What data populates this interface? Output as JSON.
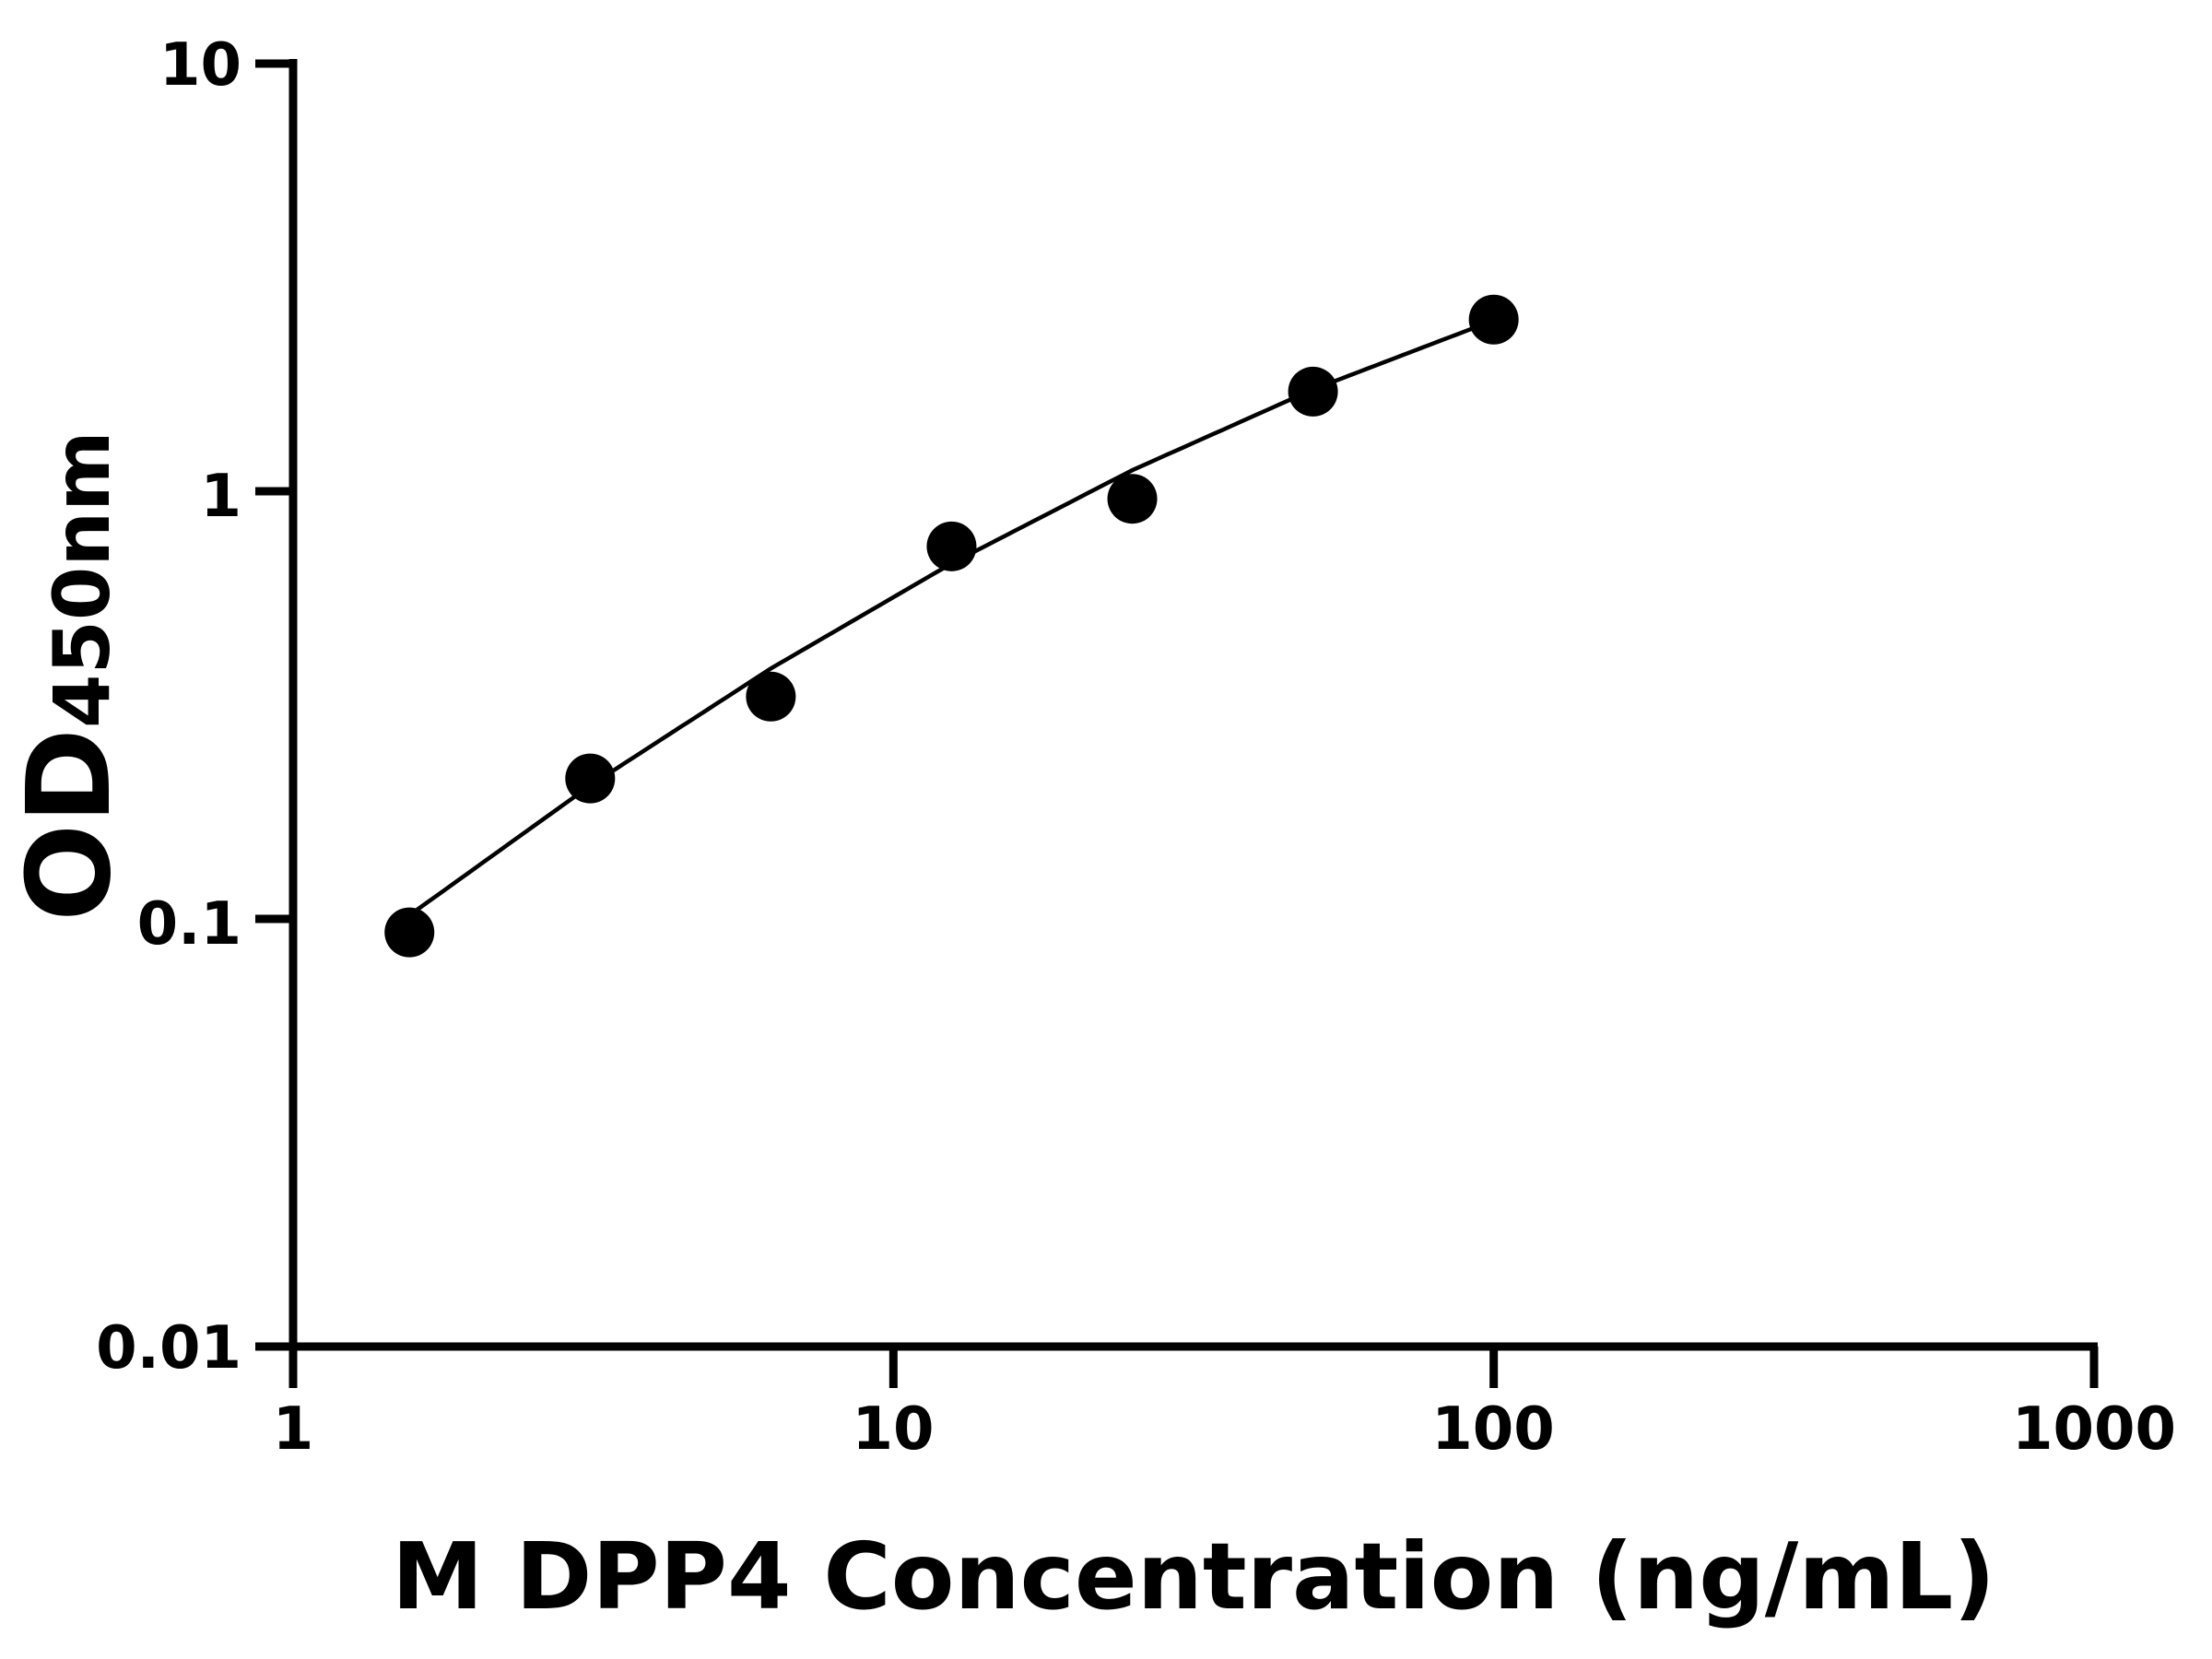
{
  "chart_data": {
    "type": "scatter",
    "title": "",
    "xlabel": "M DPP4 Concentration (ng/mL)",
    "ylabel_main": "OD",
    "ylabel_sub": "450nm",
    "xscale": "log",
    "yscale": "log",
    "xlim": [
      1,
      1000
    ],
    "ylim": [
      0.01,
      10
    ],
    "xticks": [
      "1",
      "10",
      "100",
      "1000"
    ],
    "yticks": [
      "0.01",
      "0.1",
      "1",
      "10"
    ],
    "grid": false,
    "legend": "none",
    "marker_color": "#000000",
    "series": [
      {
        "x": [
          1.5625,
          3.125,
          6.25,
          12.5,
          25,
          50,
          100
        ],
        "y": [
          0.093,
          0.213,
          0.331,
          0.743,
          0.96,
          1.71,
          2.52
        ]
      }
    ],
    "fit_curve": {
      "x": [
        1.5625,
        3.125,
        6.25,
        12.5,
        25,
        50,
        100
      ],
      "y": [
        0.102,
        0.205,
        0.385,
        0.678,
        1.12,
        1.73,
        2.51
      ]
    }
  }
}
